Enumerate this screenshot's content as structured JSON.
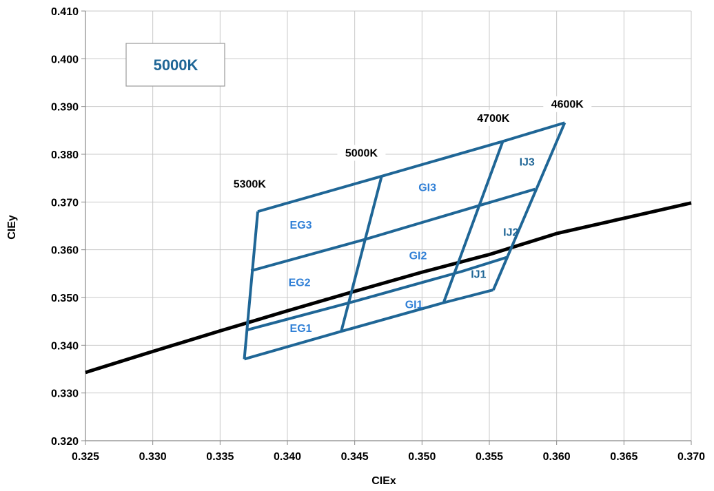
{
  "chart_data": {
    "type": "line",
    "title": "5000K",
    "xlabel": "CIEx",
    "ylabel": "CIEy",
    "xlim": [
      0.325,
      0.37
    ],
    "ylim": [
      0.32,
      0.41
    ],
    "x_ticks": [
      "0.325",
      "0.330",
      "0.335",
      "0.340",
      "0.345",
      "0.350",
      "0.355",
      "0.360",
      "0.365",
      "0.370"
    ],
    "y_ticks": [
      "0.320",
      "0.330",
      "0.340",
      "0.350",
      "0.360",
      "0.370",
      "0.380",
      "0.390",
      "0.400",
      "0.410"
    ],
    "grid": true,
    "colors": {
      "bins": "#1f6696",
      "bin_label_e_g": "#2f7fd6",
      "bin_label_ij": "#1f6696",
      "locus": "#000000",
      "title": "#1f6696"
    },
    "planckian_locus": {
      "x": [
        0.325,
        0.33,
        0.335,
        0.34,
        0.345,
        0.35,
        0.355,
        0.36,
        0.365,
        0.37
      ],
      "y": [
        0.3343,
        0.3387,
        0.343,
        0.3472,
        0.3513,
        0.3553,
        0.359,
        0.3634,
        0.3666,
        0.3698
      ]
    },
    "cct_lines": [
      {
        "label": "5300K",
        "x": [
          0.3368,
          0.3378
        ],
        "y": [
          0.3371,
          0.368
        ]
      },
      {
        "label": "5000K",
        "x": [
          0.344,
          0.347
        ],
        "y": [
          0.3429,
          0.3754
        ]
      },
      {
        "label": "4700K",
        "x": [
          0.3516,
          0.356
        ],
        "y": [
          0.3489,
          0.3827
        ]
      },
      {
        "label": "4600K",
        "x": [
          0.3553,
          0.3606
        ],
        "y": [
          0.3516,
          0.3866
        ]
      }
    ],
    "bin_rows": [
      {
        "x": [
          0.3368,
          0.344,
          0.3516,
          0.3553
        ],
        "y": [
          0.3371,
          0.3429,
          0.3489,
          0.3516
        ]
      },
      {
        "x": [
          0.337,
          0.345,
          0.353,
          0.3564
        ],
        "y": [
          0.3432,
          0.3492,
          0.3555,
          0.3585
        ]
      },
      {
        "x": [
          0.3373,
          0.3458,
          0.3543,
          0.3584
        ],
        "y": [
          0.3556,
          0.3622,
          0.3693,
          0.3727
        ]
      },
      {
        "x": [
          0.3378,
          0.347,
          0.356,
          0.3606
        ],
        "y": [
          0.368,
          0.3754,
          0.3827,
          0.3866
        ]
      }
    ],
    "bin_labels": [
      {
        "label": "EG1",
        "x": 0.341,
        "y": 0.3428,
        "group": "eg"
      },
      {
        "label": "EG2",
        "x": 0.3409,
        "y": 0.3524,
        "group": "eg"
      },
      {
        "label": "EG3",
        "x": 0.341,
        "y": 0.3644,
        "group": "eg"
      },
      {
        "label": "GI1",
        "x": 0.3494,
        "y": 0.3478,
        "group": "eg"
      },
      {
        "label": "GI2",
        "x": 0.3497,
        "y": 0.358,
        "group": "eg"
      },
      {
        "label": "GI3",
        "x": 0.3504,
        "y": 0.3723,
        "group": "eg"
      },
      {
        "label": "IJ1",
        "x": 0.3542,
        "y": 0.3541,
        "group": "ij"
      },
      {
        "label": "IJ2",
        "x": 0.3566,
        "y": 0.3629,
        "group": "ij"
      },
      {
        "label": "IJ3",
        "x": 0.3578,
        "y": 0.3776,
        "group": "ij"
      }
    ],
    "cct_text_labels": [
      {
        "label": "5300K",
        "x": 0.3372,
        "y": 0.373
      },
      {
        "label": "5000K",
        "x": 0.3455,
        "y": 0.3795
      },
      {
        "label": "4700K",
        "x": 0.3553,
        "y": 0.3868
      },
      {
        "label": "4600K",
        "x": 0.3608,
        "y": 0.3897
      }
    ]
  }
}
